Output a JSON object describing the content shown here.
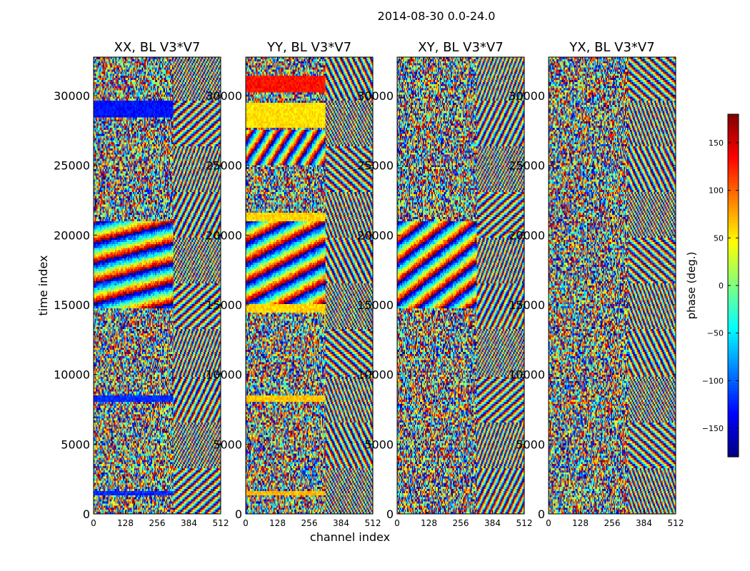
{
  "figure_title": "2014-08-30 0.0-24.0",
  "chart_data": {
    "type": "heatmap",
    "suptitle": "2014-08-30 0.0-24.0",
    "ylabel": "time index",
    "xlabel": "channel index",
    "xlim": [
      0,
      512
    ],
    "ylim": [
      0,
      32768
    ],
    "x_ticks": [
      0,
      128,
      256,
      384,
      512
    ],
    "y_ticks": [
      0,
      5000,
      10000,
      15000,
      20000,
      25000,
      30000
    ],
    "colormap": "jet",
    "colorbar": {
      "label": "phase (deg.)",
      "range": [
        -180,
        180
      ],
      "ticks": [
        -150,
        -100,
        -50,
        0,
        50,
        100,
        150
      ],
      "tick_labels": [
        "−150",
        "−100",
        "−50",
        "0",
        "50",
        "100",
        "150"
      ]
    },
    "panels": [
      {
        "title": "XX, BL V3*V7",
        "product": "XX"
      },
      {
        "title": "YY, BL V3*V7",
        "product": "YY"
      },
      {
        "title": "XY, BL V3*V7",
        "product": "XY"
      },
      {
        "title": "YX, BL V3*V7",
        "product": "YX"
      }
    ],
    "notable_features": {
      "channel_split": 320,
      "horizontal_bands": [
        1500,
        8200,
        14700,
        21200,
        24300,
        29000,
        30500
      ],
      "XX_uniform_phase_bands": [
        {
          "t0": 1300,
          "t1": 1700,
          "phase": -120
        },
        {
          "t0": 8000,
          "t1": 8500,
          "phase": -120
        },
        {
          "t0": 28400,
          "t1": 29600,
          "phase": -130
        }
      ],
      "YY_uniform_phase_bands": [
        {
          "t0": 1300,
          "t1": 1700,
          "phase": 70
        },
        {
          "t0": 8000,
          "t1": 8500,
          "phase": 65
        },
        {
          "t0": 14500,
          "t1": 15000,
          "phase": 60
        },
        {
          "t0": 21000,
          "t1": 21600,
          "phase": 60
        },
        {
          "t0": 27700,
          "t1": 29500,
          "phase": 55
        },
        {
          "t0": 30300,
          "t1": 31400,
          "phase": 130
        }
      ]
    }
  }
}
